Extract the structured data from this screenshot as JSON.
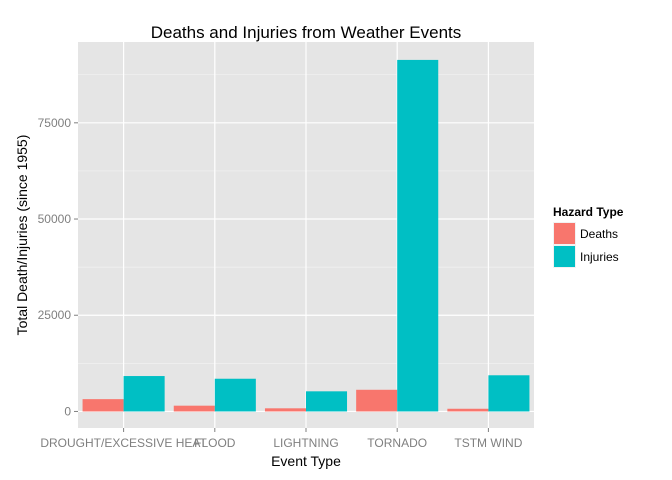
{
  "chart_data": {
    "type": "bar",
    "title": "Deaths and Injuries from Weather Events",
    "xlabel": "Event Type",
    "ylabel": "Total Death/Injuries (since 1955)",
    "categories": [
      "DROUGHT/EXCESSIVE HEAT",
      "FLOOD",
      "LIGHTNING",
      "TORNADO",
      "TSTM WIND"
    ],
    "series": [
      {
        "name": "Deaths",
        "color": "#F8766D",
        "values": [
          3200,
          1500,
          817,
          5633,
          700
        ]
      },
      {
        "name": "Injuries",
        "color": "#00BFC4",
        "values": [
          9200,
          8500,
          5230,
          91346,
          9400
        ]
      }
    ],
    "y_ticks": [
      0,
      25000,
      50000,
      75000
    ],
    "y_tick_labels": [
      "0",
      "25000",
      "50000",
      "75000"
    ],
    "ylim": [
      -4300,
      96000
    ],
    "grid": true,
    "legend": {
      "title": "Hazard Type",
      "placement": "right"
    }
  }
}
